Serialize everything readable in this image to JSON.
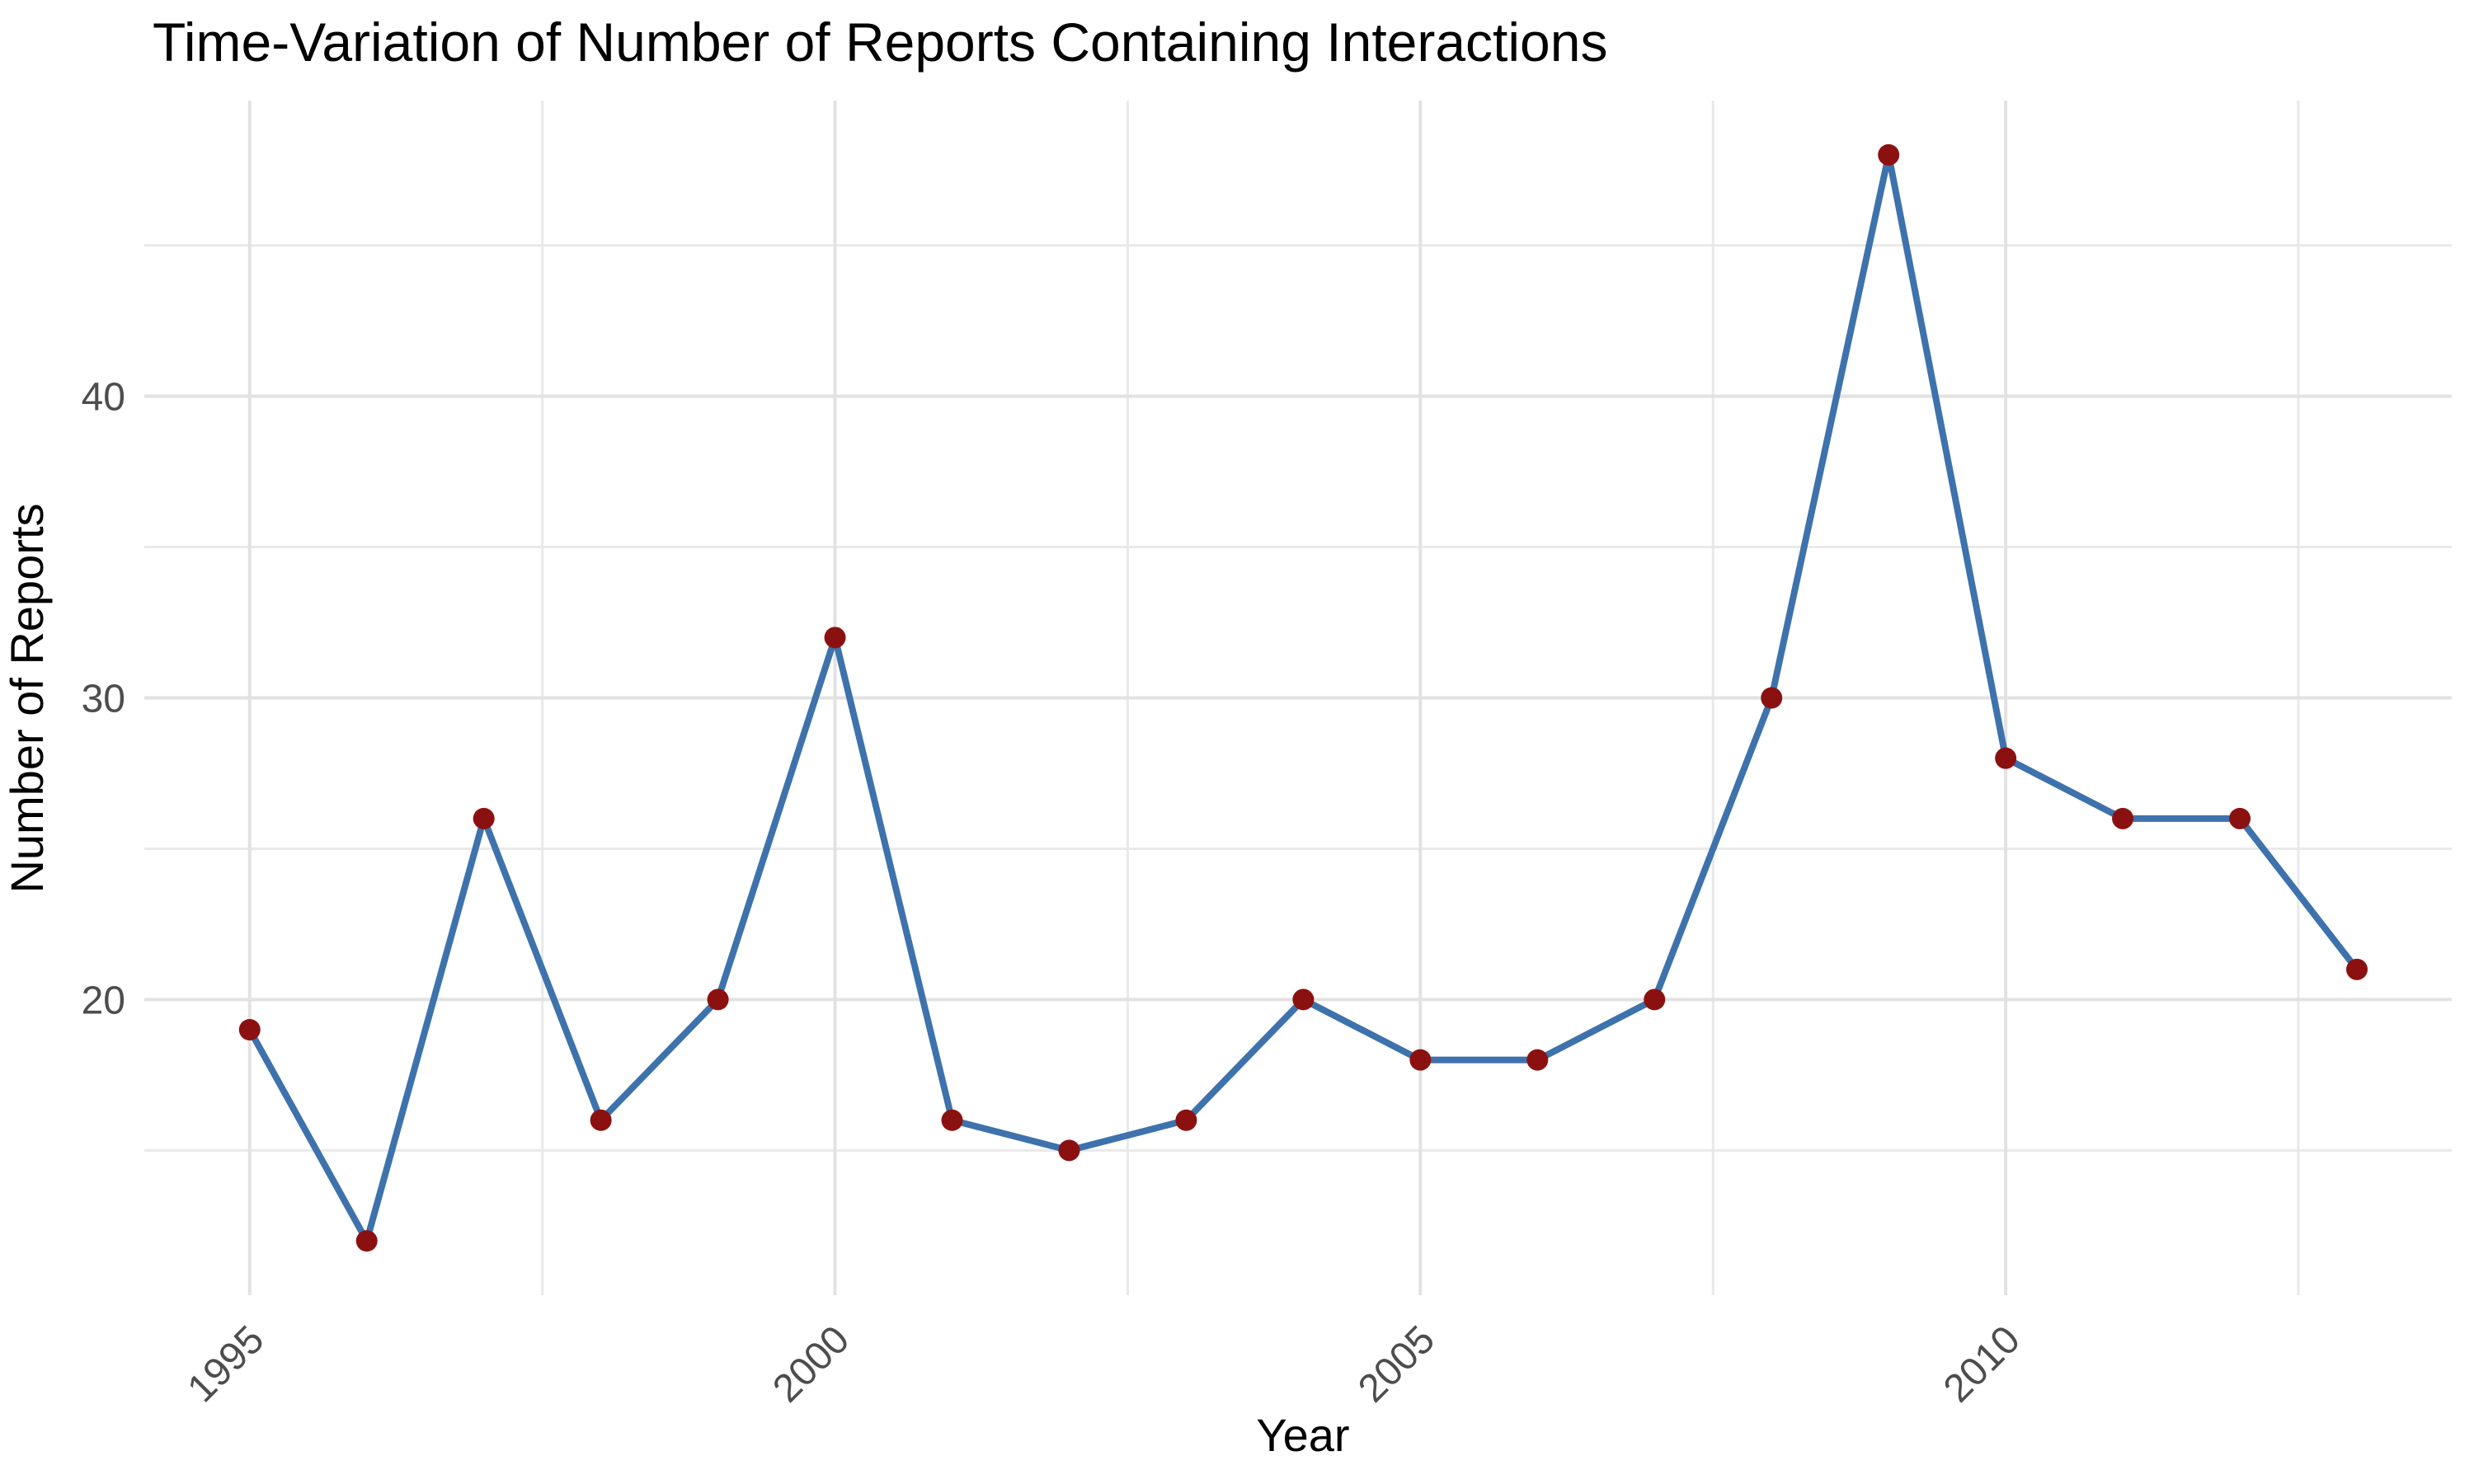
{
  "title": "Time-Variation of Number of Reports Containing Interactions",
  "chart_data": {
    "type": "line",
    "title": "Time-Variation of Number of Reports Containing Interactions",
    "xlabel": "Year",
    "ylabel": "Number of Reports",
    "x": [
      1995,
      1996,
      1997,
      1998,
      1999,
      2000,
      2001,
      2002,
      2003,
      2004,
      2005,
      2006,
      2007,
      2008,
      2009,
      2010,
      2011,
      2012,
      2013
    ],
    "series": [
      {
        "name": "Number of Reports",
        "values": [
          19,
          12,
          26,
          16,
          20,
          32,
          16,
          15,
          16,
          20,
          18,
          18,
          20,
          30,
          48,
          28,
          26,
          26,
          21
        ]
      }
    ],
    "x_major_ticks": [
      1995,
      2000,
      2005,
      2010
    ],
    "x_tick_labels": [
      "1995",
      "2000",
      "2005",
      "2010"
    ],
    "x_minor_ticks": [
      1997.5,
      2002.5,
      2007.5,
      2012.5
    ],
    "y_major_ticks": [
      20,
      30,
      40
    ],
    "y_tick_labels": [
      "20",
      "30",
      "40"
    ],
    "y_minor_ticks": [
      15,
      25,
      35,
      45
    ],
    "xlim": [
      1994.1,
      2013.81
    ],
    "ylim": [
      10.2,
      49.8
    ],
    "grid": "on",
    "legend_position": "none",
    "colors": {
      "line": "#3E72AC",
      "point": "#8B1111",
      "grid_major": "#E2E2E2",
      "grid_minor": "#E9E9E9",
      "tick_text": "#4D4D4D",
      "title_text": "#000000",
      "background": "#FFFFFF"
    }
  }
}
